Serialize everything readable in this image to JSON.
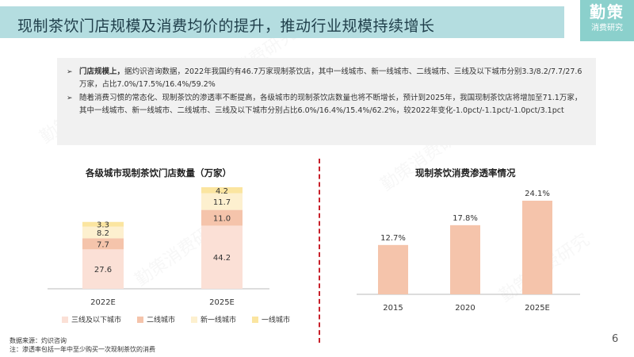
{
  "header": {
    "title": "现制茶饮门店规模及消费均价的提升，推动行业规模持续增长",
    "brand_main": "勤策",
    "brand_sub": "消费研究"
  },
  "summary": {
    "bullets": [
      {
        "lead": "门店规模上，",
        "text": "据灼识咨询数据，2022年我国约有46.7万家现制茶饮店，其中一线城市、新一线城市、二线城市、三线及以下城市分别3.3/8.2/7.7/27.6万家，占比7.0%/17.5%/16.4%/59.2%"
      },
      {
        "lead": "",
        "text": "随着消费习惯的常态化、现制茶饮的渗透率不断提高，各级城市的现制茶饮店数量也将不断增长，预计到2025年，我国现制茶饮店将增加至71.1万家，其中一线城市、新一线城市、二线城市、三线及以下城市分别占比6.0%/16.4%/15.4%/62.2%，较2022年变化-1.0pct/-1.1pct/-1.0pct/3.1pct"
      }
    ]
  },
  "chart_data": [
    {
      "type": "bar",
      "stacked": true,
      "title": "各级城市现制茶饮门店数量（万家）",
      "categories": [
        "2022E",
        "2025E"
      ],
      "series": [
        {
          "name": "三线及以下城市",
          "values": [
            27.6,
            44.2
          ],
          "color": "#fbe0d6"
        },
        {
          "name": "二线城市",
          "values": [
            7.7,
            11.0
          ],
          "color": "#f5c4ab"
        },
        {
          "name": "新一线城市",
          "values": [
            8.2,
            11.7
          ],
          "color": "#fdf0cf"
        },
        {
          "name": "一线城市",
          "values": [
            3.3,
            4.2
          ],
          "color": "#fbe5a0"
        }
      ],
      "ylim": [
        0,
        71.1
      ],
      "grid": false,
      "legend": "bottom"
    },
    {
      "type": "bar",
      "title": "现制茶饮消费渗透率情况",
      "categories": [
        "2015",
        "2020",
        "2025E"
      ],
      "values": [
        12.7,
        17.8,
        24.1
      ],
      "labels": [
        "12.7%",
        "17.8%",
        "24.1%"
      ],
      "color": "#f5c4ab",
      "ylim": [
        0,
        24.1
      ],
      "grid": false
    }
  ],
  "footnotes": {
    "source": "数据来源：灼识咨询",
    "note": "注：渗透率包括一年中至少购买一次现制茶饮的消费"
  },
  "page_number": "6",
  "watermark": "勤策消费研究"
}
